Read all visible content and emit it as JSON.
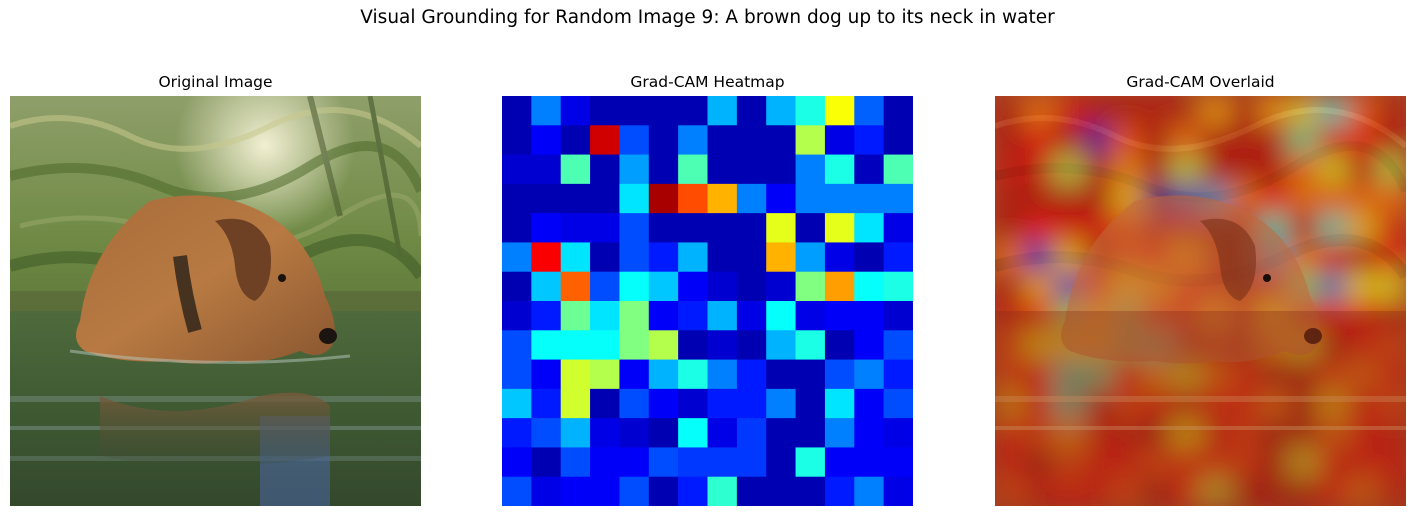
{
  "figure": {
    "title": "Visual Grounding for Random Image 9: A brown dog up to its neck in water"
  },
  "panels": [
    {
      "title": "Original Image"
    },
    {
      "title": "Grad-CAM Heatmap"
    },
    {
      "title": "Grad-CAM Overlaid"
    }
  ],
  "heatmap": {
    "colormap": "jet",
    "grid_size": [
      14,
      14
    ],
    "values": [
      [
        0.05,
        0.25,
        0.1,
        0.05,
        0.05,
        0.05,
        0.05,
        0.3,
        0.05,
        0.3,
        0.4,
        0.62,
        0.22,
        0.05
      ],
      [
        0.05,
        0.12,
        0.05,
        0.92,
        0.2,
        0.05,
        0.25,
        0.05,
        0.05,
        0.05,
        0.55,
        0.1,
        0.15,
        0.05
      ],
      [
        0.08,
        0.08,
        0.45,
        0.05,
        0.28,
        0.05,
        0.45,
        0.05,
        0.05,
        0.05,
        0.25,
        0.4,
        0.06,
        0.45
      ],
      [
        0.05,
        0.05,
        0.05,
        0.05,
        0.35,
        0.96,
        0.8,
        0.7,
        0.25,
        0.12,
        0.25,
        0.25,
        0.25,
        0.25
      ],
      [
        0.05,
        0.12,
        0.1,
        0.1,
        0.2,
        0.05,
        0.05,
        0.05,
        0.05,
        0.6,
        0.05,
        0.6,
        0.35,
        0.1
      ],
      [
        0.25,
        0.88,
        0.35,
        0.05,
        0.2,
        0.15,
        0.3,
        0.05,
        0.05,
        0.7,
        0.28,
        0.1,
        0.05,
        0.15
      ],
      [
        0.05,
        0.32,
        0.78,
        0.2,
        0.38,
        0.32,
        0.12,
        0.08,
        0.05,
        0.08,
        0.5,
        0.72,
        0.38,
        0.4
      ],
      [
        0.08,
        0.15,
        0.48,
        0.35,
        0.5,
        0.12,
        0.15,
        0.3,
        0.1,
        0.38,
        0.1,
        0.12,
        0.12,
        0.08
      ],
      [
        0.2,
        0.38,
        0.38,
        0.38,
        0.5,
        0.55,
        0.05,
        0.08,
        0.05,
        0.3,
        0.4,
        0.05,
        0.12,
        0.2
      ],
      [
        0.2,
        0.12,
        0.58,
        0.55,
        0.12,
        0.3,
        0.4,
        0.25,
        0.15,
        0.05,
        0.05,
        0.2,
        0.25,
        0.15
      ],
      [
        0.32,
        0.15,
        0.58,
        0.05,
        0.2,
        0.12,
        0.08,
        0.15,
        0.15,
        0.25,
        0.05,
        0.35,
        0.12,
        0.2
      ],
      [
        0.15,
        0.2,
        0.3,
        0.1,
        0.08,
        0.05,
        0.38,
        0.1,
        0.18,
        0.05,
        0.05,
        0.25,
        0.12,
        0.1
      ],
      [
        0.12,
        0.05,
        0.2,
        0.12,
        0.12,
        0.2,
        0.18,
        0.18,
        0.18,
        0.05,
        0.4,
        0.12,
        0.12,
        0.12
      ],
      [
        0.2,
        0.1,
        0.12,
        0.12,
        0.2,
        0.05,
        0.15,
        0.42,
        0.05,
        0.05,
        0.05,
        0.15,
        0.25,
        0.1
      ]
    ]
  }
}
